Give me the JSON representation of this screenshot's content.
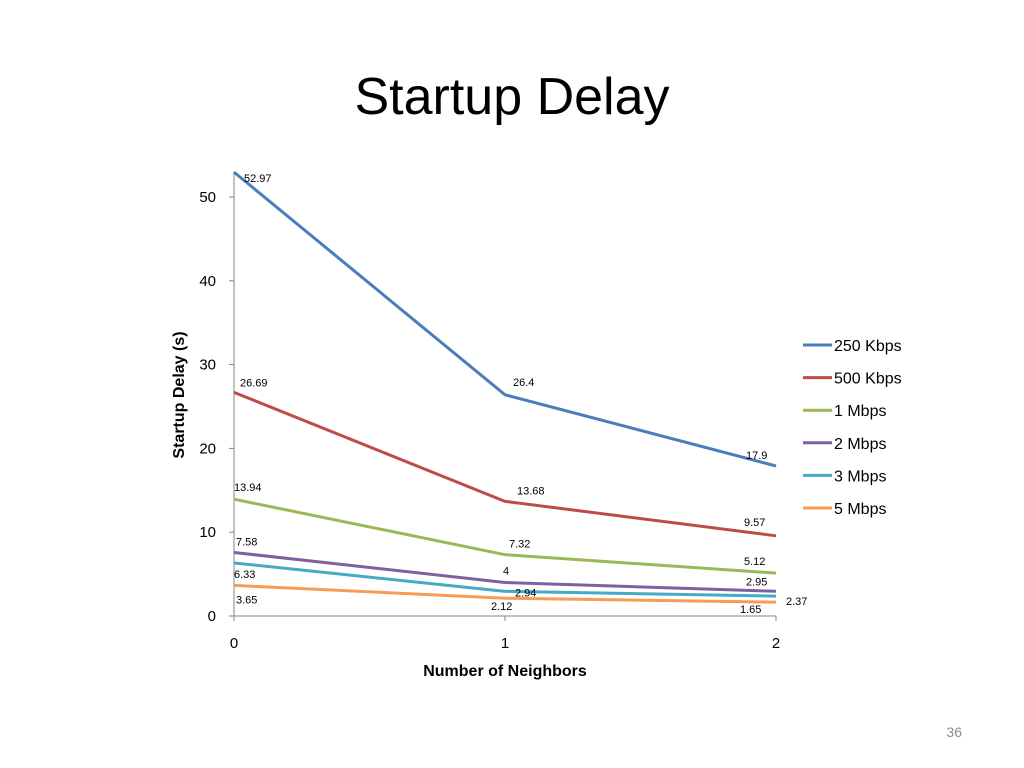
{
  "slide": {
    "title": "Startup Delay",
    "page_number": "36"
  },
  "chart_data": {
    "type": "line",
    "title": "",
    "xlabel": "Number of Neighbors",
    "ylabel": "Startup Delay (s)",
    "x": [
      0,
      1,
      2
    ],
    "x_tick_labels": [
      "0",
      "1",
      "2"
    ],
    "ylim": [
      0,
      53
    ],
    "y_ticks": [
      0,
      10,
      20,
      30,
      40,
      50
    ],
    "grid": false,
    "legend_position": "right",
    "series": [
      {
        "name": "250 Kbps",
        "color": "#4A7EBB",
        "values": [
          52.97,
          26.4,
          17.9
        ],
        "labels": [
          "52.97",
          "26.4",
          "17.9"
        ]
      },
      {
        "name": "500 Kbps",
        "color": "#BE4B48",
        "values": [
          26.69,
          13.68,
          9.57
        ],
        "labels": [
          "26.69",
          "13.68",
          "9.57"
        ]
      },
      {
        "name": "1 Mbps",
        "color": "#98B954",
        "values": [
          13.94,
          7.32,
          5.12
        ],
        "labels": [
          "13.94",
          "7.32",
          "5.12"
        ]
      },
      {
        "name": "2 Mbps",
        "color": "#7D60A0",
        "values": [
          7.58,
          4,
          2.95
        ],
        "labels": [
          "7.58",
          "4",
          "2.95"
        ]
      },
      {
        "name": "3 Mbps",
        "color": "#46AAC5",
        "values": [
          6.33,
          2.94,
          2.37
        ],
        "labels": [
          "6.33",
          "2.94",
          "2.37"
        ]
      },
      {
        "name": "5 Mbps",
        "color": "#F59D56",
        "values": [
          3.65,
          2.12,
          1.65
        ],
        "labels": [
          "3.65",
          "2.12",
          "1.65"
        ]
      }
    ]
  }
}
